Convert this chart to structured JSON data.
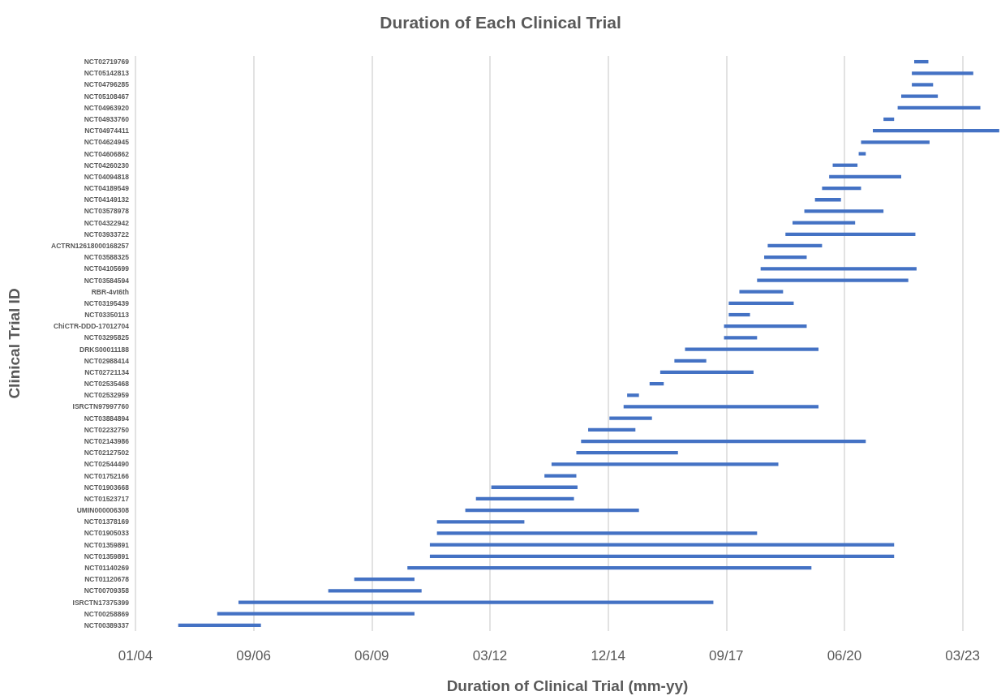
{
  "chart_data": {
    "type": "bar",
    "orientation": "horizontal",
    "title": "Duration of Each Clinical Trial",
    "xlabel": "Duration of Clinical Trial (mm-yy)",
    "ylabel": "Clinical Trial ID",
    "categories": [
      "NCT02719769",
      "NCT05142813",
      "NCT04796285",
      "NCT05108467",
      "NCT04963920",
      "NCT04933760",
      "NCT04974411",
      "NCT04624945",
      "NCT04606862",
      "NCT04260230",
      "NCT04094818",
      "NCT04189549",
      "NCT04149132",
      "NCT03578978",
      "NCT04322942",
      "NCT03933722",
      "ACTRN12618000168257",
      "NCT03588325",
      "NCT04105699",
      "NCT03584594",
      "RBR-4vt6th",
      "NCT03195439",
      "NCT03350113",
      "ChiCTR-DDD-17012704",
      "NCT03295825",
      "DRKS00011188",
      "NCT02988414",
      "NCT02721134",
      "NCT02535468",
      "NCT02532959",
      "ISRCTN97997760",
      "NCT03884894",
      "NCT02232750",
      "NCT02143986",
      "NCT02127502",
      "NCT02544490",
      "NCT01752166",
      "NCT01903668",
      "NCT01523717",
      "UMIN000006308",
      "NCT01378169",
      "NCT01905033",
      "NCT01359891",
      "NCT01359891",
      "NCT01140269",
      "NCT01120678",
      "NCT00709358",
      "ISRCTN17375399",
      "NCT00258869",
      "NCT00389337"
    ],
    "base": [
      19010,
      18990,
      18990,
      18900,
      18870,
      18750,
      18660,
      18560,
      18540,
      18320,
      18290,
      18230,
      18170,
      18080,
      17980,
      17920,
      17770,
      17740,
      17710,
      17680,
      17530,
      17440,
      17440,
      17400,
      17400,
      17070,
      16980,
      16860,
      16770,
      16580,
      16550,
      16430,
      16250,
      16190,
      16150,
      15940,
      15880,
      15430,
      15300,
      15210,
      14970,
      14970,
      14910,
      14910,
      14720,
      14270,
      14050,
      13290,
      13110,
      12780
    ],
    "values": [
      120,
      520,
      180,
      310,
      700,
      90,
      1070,
      580,
      60,
      210,
      610,
      330,
      220,
      670,
      530,
      1100,
      460,
      360,
      1320,
      1280,
      370,
      550,
      180,
      700,
      280,
      1130,
      270,
      790,
      120,
      100,
      1650,
      360,
      400,
      2410,
      860,
      1920,
      270,
      730,
      830,
      1470,
      740,
      2710,
      3930,
      3930,
      3420,
      510,
      790,
      4020,
      1670,
      700
    ],
    "color": "#4472c4",
    "xlim": [
      "2004-01-01",
      "2024-01-09"
    ],
    "xticks": [
      {
        "value": "2004-01-01",
        "label": "01/04"
      },
      {
        "value": "2006-09-27",
        "label": "09/06"
      },
      {
        "value": "2009-06-23",
        "label": "06/09"
      },
      {
        "value": "2012-03-20",
        "label": "03/12"
      },
      {
        "value": "2014-12-15",
        "label": "12/14"
      },
      {
        "value": "2017-09-10",
        "label": "09/17"
      },
      {
        "value": "2020-06-06",
        "label": "06/20"
      },
      {
        "value": "2023-03-03",
        "label": "03/23"
      }
    ],
    "grid": "x"
  }
}
